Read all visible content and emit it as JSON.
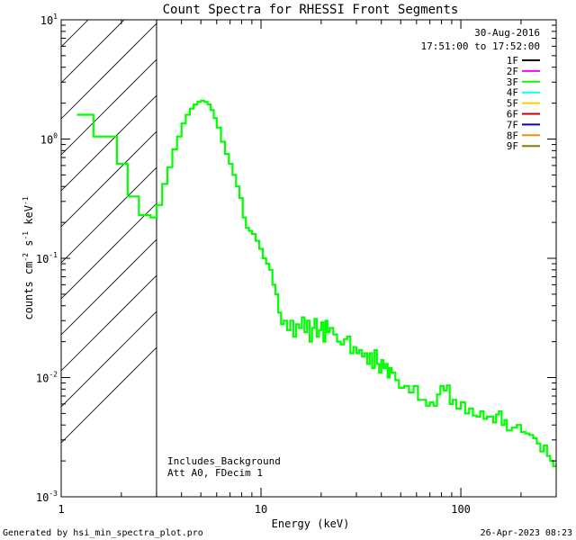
{
  "chart_data": {
    "type": "line",
    "title": "Count Spectra for RHESSI Front Segments",
    "xlabel": "Energy (keV)",
    "ylabel_parts": {
      "a": "counts cm",
      "b": "-2",
      "c": " s",
      "d": "-1",
      "e": " keV",
      "f": "-1"
    },
    "x_scale": "log",
    "y_scale": "log",
    "xlim": [
      1,
      300
    ],
    "ylim": [
      0.001,
      10
    ],
    "x_ticks": [
      {
        "value": 1,
        "label": "1"
      },
      {
        "value": 10,
        "label": "10"
      },
      {
        "value": 100,
        "label": "100"
      }
    ],
    "y_ticks": [
      {
        "value": 0.001,
        "base": "10",
        "exp": "-3"
      },
      {
        "value": 0.01,
        "base": "10",
        "exp": "-2"
      },
      {
        "value": 0.1,
        "base": "10",
        "exp": "-1"
      },
      {
        "value": 1,
        "base": "10",
        "exp": "0"
      },
      {
        "value": 10,
        "base": "10",
        "exp": "1"
      }
    ],
    "date": "30-Aug-2016",
    "time_range": "17:51:00 to 17:52:00",
    "legend_position": "top-right",
    "legend": [
      {
        "label": "1F",
        "color": "#000000"
      },
      {
        "label": "2F",
        "color": "#ff00ff"
      },
      {
        "label": "3F",
        "color": "#00ff00"
      },
      {
        "label": "4F",
        "color": "#00ffff"
      },
      {
        "label": "5F",
        "color": "#ffcc00"
      },
      {
        "label": "6F",
        "color": "#cc0000"
      },
      {
        "label": "7F",
        "color": "#0000cc"
      },
      {
        "label": "8F",
        "color": "#ff8800"
      },
      {
        "label": "9F",
        "color": "#808000"
      }
    ],
    "shaded_region_x": [
      1,
      3
    ],
    "annotations": [
      "Includes_Background",
      "Att A0, FDecim 1"
    ],
    "series": [
      {
        "color": "#00ff00",
        "x": [
          1.2,
          1.35,
          1.45,
          1.65,
          1.9,
          2.15,
          2.45,
          2.8,
          3.0,
          3.2,
          3.4,
          3.6,
          3.8,
          4.0,
          4.2,
          4.4,
          4.6,
          4.8,
          5.0,
          5.2,
          5.4,
          5.6,
          5.8,
          6.0,
          6.3,
          6.6,
          6.9,
          7.2,
          7.5,
          7.8,
          8.1,
          8.4,
          8.7,
          9.0,
          9.4,
          9.8,
          10.2,
          10.6,
          11.0,
          11.4,
          11.8,
          12.2,
          12.6,
          13.0,
          13.5,
          14.0,
          14.5,
          15.0,
          15.5,
          16.0,
          16.5,
          17.0,
          17.5,
          18.0,
          18.5,
          19.0,
          19.5,
          20.0,
          20.5,
          21.0,
          21.5,
          22.0,
          23.0,
          24.0,
          25.0,
          26.0,
          27.0,
          28.0,
          29.0,
          30.0,
          31.0,
          32.0,
          33.0,
          34.0,
          35.0,
          36.0,
          37.0,
          38.0,
          39.0,
          40.0,
          41.0,
          42.0,
          43.0,
          44.0,
          45.0,
          47.0,
          49.0,
          52.0,
          55.0,
          58.0,
          61.0,
          64.0,
          67.0,
          70.0,
          73.0,
          76.0,
          79.0,
          82.0,
          85.0,
          88.0,
          91.0,
          95.0,
          100.0,
          105.0,
          110.0,
          115.0,
          120.0,
          125.0,
          130.0,
          135.0,
          140.0,
          145.0,
          150.0,
          155.0,
          160.0,
          165.0,
          170.0,
          180.0,
          190.0,
          200.0,
          210.0,
          220.0,
          230.0,
          240.0,
          250.0,
          260.0,
          270.0,
          280.0,
          290.0,
          300.0
        ],
        "y": [
          1.6,
          1.6,
          1.05,
          1.05,
          0.62,
          0.33,
          0.23,
          0.22,
          0.28,
          0.42,
          0.58,
          0.82,
          1.05,
          1.35,
          1.6,
          1.8,
          1.95,
          2.05,
          2.1,
          2.05,
          1.95,
          1.75,
          1.5,
          1.25,
          0.95,
          0.75,
          0.62,
          0.5,
          0.4,
          0.32,
          0.22,
          0.18,
          0.17,
          0.16,
          0.14,
          0.12,
          0.1,
          0.09,
          0.08,
          0.06,
          0.05,
          0.035,
          0.028,
          0.03,
          0.025,
          0.03,
          0.022,
          0.028,
          0.026,
          0.032,
          0.024,
          0.03,
          0.02,
          0.026,
          0.031,
          0.022,
          0.025,
          0.029,
          0.02,
          0.03,
          0.024,
          0.026,
          0.023,
          0.02,
          0.019,
          0.021,
          0.022,
          0.016,
          0.018,
          0.016,
          0.017,
          0.015,
          0.016,
          0.013,
          0.016,
          0.012,
          0.017,
          0.013,
          0.011,
          0.014,
          0.012,
          0.013,
          0.01,
          0.012,
          0.011,
          0.0095,
          0.0082,
          0.0085,
          0.0075,
          0.0085,
          0.0065,
          0.0065,
          0.0058,
          0.0062,
          0.0058,
          0.0072,
          0.0085,
          0.0078,
          0.0086,
          0.006,
          0.0065,
          0.0055,
          0.0062,
          0.005,
          0.0055,
          0.0048,
          0.0047,
          0.0052,
          0.0045,
          0.0047,
          0.0047,
          0.0042,
          0.0049,
          0.0052,
          0.004,
          0.0044,
          0.0036,
          0.0038,
          0.004,
          0.0035,
          0.0034,
          0.0033,
          0.0031,
          0.0028,
          0.0024,
          0.0027,
          0.0022,
          0.002,
          0.0018,
          0.0019
        ]
      }
    ]
  },
  "footer": {
    "left": "Generated by hsi_min_spectra_plot.pro",
    "right": "26-Apr-2023 08:23"
  }
}
